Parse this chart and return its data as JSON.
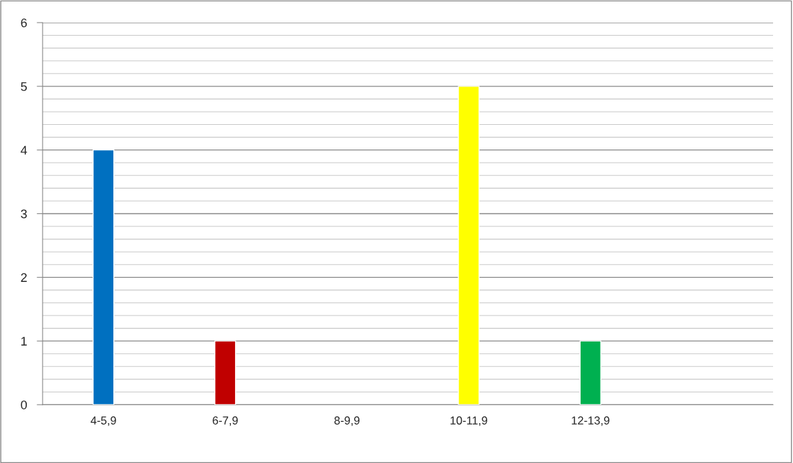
{
  "chart_data": {
    "type": "bar",
    "categories": [
      "4-5,9",
      "6-7,9",
      "8-9,9",
      "10-11,9",
      "12-13,9",
      null
    ],
    "values": [
      4,
      1,
      null,
      5,
      1,
      null
    ],
    "colors": [
      "#0070c0",
      "#c00000",
      "#7f7f7f",
      "#ffff00",
      "#00b050",
      "#7f7f7f"
    ],
    "ylim": [
      0,
      6
    ],
    "yticks": [
      0,
      1,
      2,
      3,
      4,
      5,
      6
    ],
    "grid": "y",
    "legend": false
  }
}
